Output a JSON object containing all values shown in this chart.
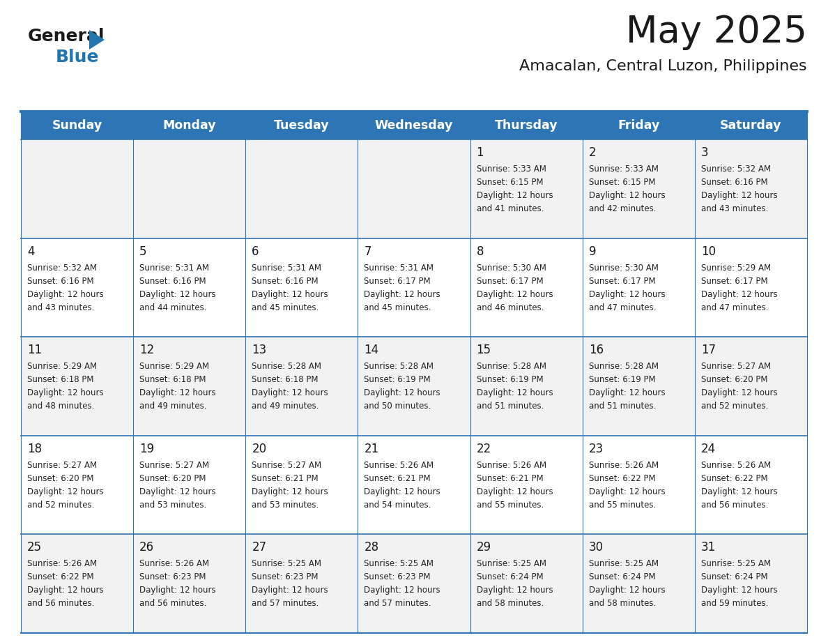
{
  "title": "May 2025",
  "subtitle": "Amacalan, Central Luzon, Philippines",
  "days_of_week": [
    "Sunday",
    "Monday",
    "Tuesday",
    "Wednesday",
    "Thursday",
    "Friday",
    "Saturday"
  ],
  "header_bg": "#2E75B6",
  "header_text": "#FFFFFF",
  "cell_bg_odd": "#F2F2F2",
  "cell_bg_even": "#FFFFFF",
  "text_color": "#222222",
  "border_color": "#2E75B6",
  "title_color": "#1a1a1a",
  "subtitle_color": "#1a1a1a",
  "logo_black": "#1a1a1a",
  "logo_blue": "#2176AE",
  "calendar": [
    [
      {
        "day": null,
        "sunrise": null,
        "sunset": null,
        "daylight_hours": null,
        "daylight_mins": null
      },
      {
        "day": null,
        "sunrise": null,
        "sunset": null,
        "daylight_hours": null,
        "daylight_mins": null
      },
      {
        "day": null,
        "sunrise": null,
        "sunset": null,
        "daylight_hours": null,
        "daylight_mins": null
      },
      {
        "day": null,
        "sunrise": null,
        "sunset": null,
        "daylight_hours": null,
        "daylight_mins": null
      },
      {
        "day": 1,
        "sunrise": "5:33 AM",
        "sunset": "6:15 PM",
        "daylight_hours": "12 hours",
        "daylight_mins": "and 41 minutes."
      },
      {
        "day": 2,
        "sunrise": "5:33 AM",
        "sunset": "6:15 PM",
        "daylight_hours": "12 hours",
        "daylight_mins": "and 42 minutes."
      },
      {
        "day": 3,
        "sunrise": "5:32 AM",
        "sunset": "6:16 PM",
        "daylight_hours": "12 hours",
        "daylight_mins": "and 43 minutes."
      }
    ],
    [
      {
        "day": 4,
        "sunrise": "5:32 AM",
        "sunset": "6:16 PM",
        "daylight_hours": "12 hours",
        "daylight_mins": "and 43 minutes."
      },
      {
        "day": 5,
        "sunrise": "5:31 AM",
        "sunset": "6:16 PM",
        "daylight_hours": "12 hours",
        "daylight_mins": "and 44 minutes."
      },
      {
        "day": 6,
        "sunrise": "5:31 AM",
        "sunset": "6:16 PM",
        "daylight_hours": "12 hours",
        "daylight_mins": "and 45 minutes."
      },
      {
        "day": 7,
        "sunrise": "5:31 AM",
        "sunset": "6:17 PM",
        "daylight_hours": "12 hours",
        "daylight_mins": "and 45 minutes."
      },
      {
        "day": 8,
        "sunrise": "5:30 AM",
        "sunset": "6:17 PM",
        "daylight_hours": "12 hours",
        "daylight_mins": "and 46 minutes."
      },
      {
        "day": 9,
        "sunrise": "5:30 AM",
        "sunset": "6:17 PM",
        "daylight_hours": "12 hours",
        "daylight_mins": "and 47 minutes."
      },
      {
        "day": 10,
        "sunrise": "5:29 AM",
        "sunset": "6:17 PM",
        "daylight_hours": "12 hours",
        "daylight_mins": "and 47 minutes."
      }
    ],
    [
      {
        "day": 11,
        "sunrise": "5:29 AM",
        "sunset": "6:18 PM",
        "daylight_hours": "12 hours",
        "daylight_mins": "and 48 minutes."
      },
      {
        "day": 12,
        "sunrise": "5:29 AM",
        "sunset": "6:18 PM",
        "daylight_hours": "12 hours",
        "daylight_mins": "and 49 minutes."
      },
      {
        "day": 13,
        "sunrise": "5:28 AM",
        "sunset": "6:18 PM",
        "daylight_hours": "12 hours",
        "daylight_mins": "and 49 minutes."
      },
      {
        "day": 14,
        "sunrise": "5:28 AM",
        "sunset": "6:19 PM",
        "daylight_hours": "12 hours",
        "daylight_mins": "and 50 minutes."
      },
      {
        "day": 15,
        "sunrise": "5:28 AM",
        "sunset": "6:19 PM",
        "daylight_hours": "12 hours",
        "daylight_mins": "and 51 minutes."
      },
      {
        "day": 16,
        "sunrise": "5:28 AM",
        "sunset": "6:19 PM",
        "daylight_hours": "12 hours",
        "daylight_mins": "and 51 minutes."
      },
      {
        "day": 17,
        "sunrise": "5:27 AM",
        "sunset": "6:20 PM",
        "daylight_hours": "12 hours",
        "daylight_mins": "and 52 minutes."
      }
    ],
    [
      {
        "day": 18,
        "sunrise": "5:27 AM",
        "sunset": "6:20 PM",
        "daylight_hours": "12 hours",
        "daylight_mins": "and 52 minutes."
      },
      {
        "day": 19,
        "sunrise": "5:27 AM",
        "sunset": "6:20 PM",
        "daylight_hours": "12 hours",
        "daylight_mins": "and 53 minutes."
      },
      {
        "day": 20,
        "sunrise": "5:27 AM",
        "sunset": "6:21 PM",
        "daylight_hours": "12 hours",
        "daylight_mins": "and 53 minutes."
      },
      {
        "day": 21,
        "sunrise": "5:26 AM",
        "sunset": "6:21 PM",
        "daylight_hours": "12 hours",
        "daylight_mins": "and 54 minutes."
      },
      {
        "day": 22,
        "sunrise": "5:26 AM",
        "sunset": "6:21 PM",
        "daylight_hours": "12 hours",
        "daylight_mins": "and 55 minutes."
      },
      {
        "day": 23,
        "sunrise": "5:26 AM",
        "sunset": "6:22 PM",
        "daylight_hours": "12 hours",
        "daylight_mins": "and 55 minutes."
      },
      {
        "day": 24,
        "sunrise": "5:26 AM",
        "sunset": "6:22 PM",
        "daylight_hours": "12 hours",
        "daylight_mins": "and 56 minutes."
      }
    ],
    [
      {
        "day": 25,
        "sunrise": "5:26 AM",
        "sunset": "6:22 PM",
        "daylight_hours": "12 hours",
        "daylight_mins": "and 56 minutes."
      },
      {
        "day": 26,
        "sunrise": "5:26 AM",
        "sunset": "6:23 PM",
        "daylight_hours": "12 hours",
        "daylight_mins": "and 56 minutes."
      },
      {
        "day": 27,
        "sunrise": "5:25 AM",
        "sunset": "6:23 PM",
        "daylight_hours": "12 hours",
        "daylight_mins": "and 57 minutes."
      },
      {
        "day": 28,
        "sunrise": "5:25 AM",
        "sunset": "6:23 PM",
        "daylight_hours": "12 hours",
        "daylight_mins": "and 57 minutes."
      },
      {
        "day": 29,
        "sunrise": "5:25 AM",
        "sunset": "6:24 PM",
        "daylight_hours": "12 hours",
        "daylight_mins": "and 58 minutes."
      },
      {
        "day": 30,
        "sunrise": "5:25 AM",
        "sunset": "6:24 PM",
        "daylight_hours": "12 hours",
        "daylight_mins": "and 58 minutes."
      },
      {
        "day": 31,
        "sunrise": "5:25 AM",
        "sunset": "6:24 PM",
        "daylight_hours": "12 hours",
        "daylight_mins": "and 59 minutes."
      }
    ]
  ]
}
